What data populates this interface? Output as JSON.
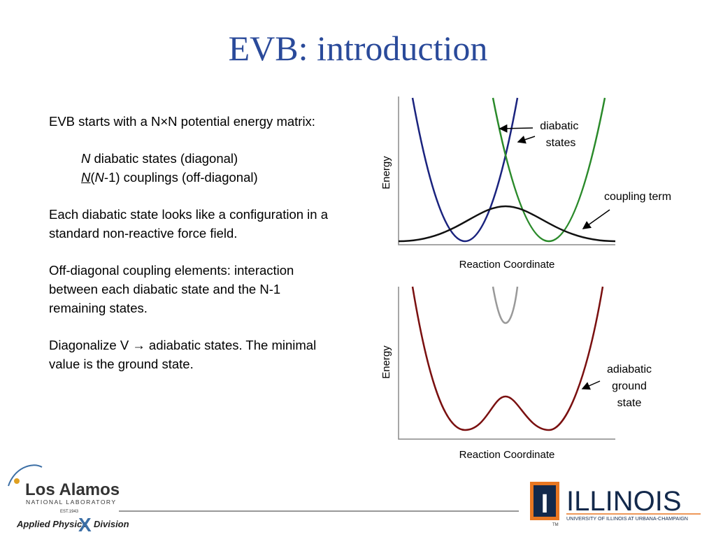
{
  "title": "EVB: introduction",
  "body": {
    "p1": "EVB starts with a N×N potential energy matrix:",
    "item1": [
      "N",
      " diabatic states (diagonal)"
    ],
    "item2": [
      "N",
      "(",
      "N",
      "-1) couplings (off-diagonal)"
    ],
    "p2": "Each diabatic state looks like a configuration in a standard non-reactive force field.",
    "p3": "Off-diagonal coupling elements: interaction between each diabatic state and the N-1 remaining states.",
    "p4": "Diagonalize V → adiabatic states. The minimal value is the ground state."
  },
  "figure_top": {
    "y_label": "Energy",
    "x_label": "Reaction Coordinate",
    "label_diabatic": "diabatic states",
    "label_coupling": "coupling term"
  },
  "figure_bottom": {
    "y_label": "Energy",
    "x_label": "Reaction Coordinate",
    "label_adiabatic": "adiabatic ground state"
  },
  "logos": {
    "lanl_name": "Los Alamos",
    "lanl_sub": "NATIONAL LABORATORY",
    "lanl_est": "EST.1943",
    "apd_1": "Applied Physics",
    "apd_x": "X",
    "apd_2": "Division",
    "illinois": "ILLINOIS",
    "illinois_sub": "UNIVERSITY OF ILLINOIS AT URBANA-CHAMPAIGN",
    "tm": "TM",
    "block_i": "I"
  }
}
